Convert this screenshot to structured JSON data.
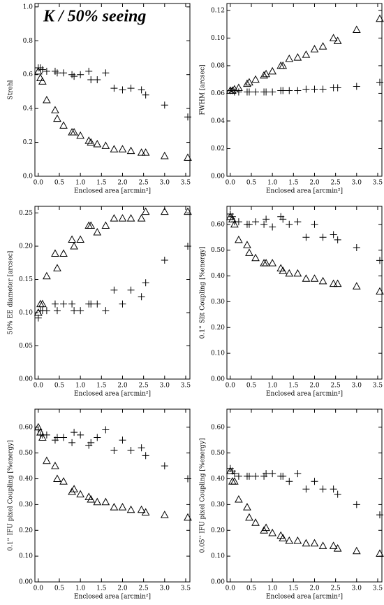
{
  "chart_data": [
    {
      "type": "scatter",
      "annotation": "K / 50% seeing",
      "ylabel": "Strehl",
      "xlabel": "Enclosed area [arcmin²]",
      "xlim": [
        -0.08,
        3.6
      ],
      "xticks": [
        {
          "value": 0,
          "label": "0.0"
        },
        0.5,
        {
          "value": 1,
          "label": "1.0"
        },
        1.5,
        {
          "value": 2,
          "label": "2.0"
        },
        2.5,
        {
          "value": 3,
          "label": "3.0"
        },
        3.5
      ],
      "ylim": [
        0,
        1.02
      ],
      "yticks": [
        {
          "value": 0,
          "label": "0.0"
        },
        0.2,
        0.4,
        0.6,
        0.8,
        {
          "value": 1,
          "label": "1.0"
        }
      ],
      "x": [
        0.0,
        0.05,
        0.1,
        0.2,
        0.4,
        0.45,
        0.6,
        0.8,
        0.85,
        1.0,
        1.2,
        1.25,
        1.4,
        1.6,
        1.8,
        2.0,
        2.2,
        2.45,
        2.55,
        3.0,
        3.55
      ],
      "series": [
        {
          "marker": "plus",
          "color": "#000",
          "values": [
            0.64,
            0.64,
            0.63,
            0.62,
            0.62,
            0.61,
            0.61,
            0.6,
            0.59,
            0.6,
            0.62,
            0.57,
            0.57,
            0.61,
            0.52,
            0.51,
            0.52,
            0.51,
            0.48,
            0.42,
            0.35
          ]
        },
        {
          "marker": "triangle",
          "color": "#000",
          "values": [
            0.62,
            0.58,
            0.56,
            0.45,
            0.39,
            0.34,
            0.3,
            0.26,
            0.26,
            0.24,
            0.21,
            0.2,
            0.19,
            0.18,
            0.16,
            0.16,
            0.15,
            0.14,
            0.14,
            0.12,
            0.11
          ]
        }
      ]
    },
    {
      "type": "scatter",
      "ylabel": "FWHM [arcsec]",
      "xlabel": "Enclosed area [arcmin²]",
      "xlim": [
        -0.08,
        3.6
      ],
      "xticks": [
        {
          "value": 0,
          "label": "0.0"
        },
        0.5,
        {
          "value": 1,
          "label": "1.0"
        },
        1.5,
        {
          "value": 2,
          "label": "2.0"
        },
        2.5,
        {
          "value": 3,
          "label": "3.0"
        },
        3.5
      ],
      "ylim": [
        0,
        0.125
      ],
      "yticks": [
        {
          "value": 0,
          "label": "0.00"
        },
        0.02,
        0.04,
        0.06,
        0.08,
        {
          "value": 0.1,
          "label": "0.10"
        },
        0.12
      ],
      "x": [
        0.0,
        0.05,
        0.1,
        0.2,
        0.4,
        0.45,
        0.6,
        0.8,
        0.85,
        1.0,
        1.2,
        1.25,
        1.4,
        1.6,
        1.8,
        2.0,
        2.2,
        2.45,
        2.55,
        3.0,
        3.55
      ],
      "series": [
        {
          "marker": "plus",
          "color": "#000",
          "values": [
            0.062,
            0.062,
            0.061,
            0.061,
            0.061,
            0.061,
            0.061,
            0.061,
            0.061,
            0.061,
            0.062,
            0.062,
            0.062,
            0.062,
            0.063,
            0.063,
            0.063,
            0.064,
            0.064,
            0.065,
            0.068
          ]
        },
        {
          "marker": "triangle",
          "color": "#000",
          "values": [
            0.062,
            0.062,
            0.063,
            0.064,
            0.067,
            0.068,
            0.07,
            0.073,
            0.074,
            0.076,
            0.08,
            0.08,
            0.085,
            0.086,
            0.088,
            0.092,
            0.094,
            0.1,
            0.098,
            0.106,
            0.114
          ]
        }
      ]
    },
    {
      "type": "scatter",
      "ylabel": "50% EE diameter [arcsec]",
      "xlabel": "Enclosed area [arcmin²]",
      "xlim": [
        -0.08,
        3.6
      ],
      "xticks": [
        {
          "value": 0,
          "label": "0.0"
        },
        0.5,
        {
          "value": 1,
          "label": "1.0"
        },
        1.5,
        {
          "value": 2,
          "label": "2.0"
        },
        2.5,
        {
          "value": 3,
          "label": "3.0"
        },
        3.5
      ],
      "ylim": [
        0,
        0.26
      ],
      "yticks": [
        {
          "value": 0,
          "label": "0.00"
        },
        0.05,
        {
          "value": 0.1,
          "label": "0.10"
        },
        0.15,
        {
          "value": 0.2,
          "label": "0.20"
        },
        0.25
      ],
      "x": [
        0.0,
        0.05,
        0.1,
        0.2,
        0.4,
        0.45,
        0.6,
        0.8,
        0.85,
        1.0,
        1.2,
        1.25,
        1.4,
        1.6,
        1.8,
        2.0,
        2.2,
        2.45,
        2.55,
        3.0,
        3.55
      ],
      "series": [
        {
          "marker": "plus",
          "color": "#000",
          "values": [
            0.092,
            0.103,
            0.103,
            0.103,
            0.113,
            0.103,
            0.113,
            0.113,
            0.103,
            0.103,
            0.113,
            0.113,
            0.113,
            0.103,
            0.134,
            0.113,
            0.134,
            0.124,
            0.145,
            0.179,
            0.2
          ]
        },
        {
          "marker": "triangle",
          "color": "#000",
          "values": [
            0.1,
            0.113,
            0.113,
            0.155,
            0.189,
            0.167,
            0.189,
            0.21,
            0.2,
            0.21,
            0.231,
            0.231,
            0.221,
            0.231,
            0.242,
            0.242,
            0.242,
            0.242,
            0.252,
            0.252,
            0.252
          ]
        }
      ]
    },
    {
      "type": "scatter",
      "ylabel": "0.1'' Slit Coupling [%energy]",
      "xlabel": "Enclosed area [arcmin²]",
      "xlim": [
        -0.08,
        3.6
      ],
      "xticks": [
        {
          "value": 0,
          "label": "0.0"
        },
        0.5,
        {
          "value": 1,
          "label": "1.0"
        },
        1.5,
        {
          "value": 2,
          "label": "2.0"
        },
        2.5,
        {
          "value": 3,
          "label": "3.0"
        },
        3.5
      ],
      "ylim": [
        0,
        0.67
      ],
      "yticks": [
        {
          "value": 0,
          "label": "0.00"
        },
        {
          "value": 0.1,
          "label": "0.10"
        },
        {
          "value": 0.2,
          "label": "0.20"
        },
        {
          "value": 0.3,
          "label": "0.30"
        },
        {
          "value": 0.4,
          "label": "0.40"
        },
        {
          "value": 0.5,
          "label": "0.50"
        },
        {
          "value": 0.6,
          "label": "0.60"
        }
      ],
      "x": [
        0.0,
        0.05,
        0.1,
        0.2,
        0.4,
        0.45,
        0.6,
        0.8,
        0.85,
        1.0,
        1.2,
        1.25,
        1.4,
        1.6,
        1.8,
        2.0,
        2.2,
        2.45,
        2.55,
        3.0,
        3.55
      ],
      "series": [
        {
          "marker": "plus",
          "color": "#000",
          "values": [
            0.64,
            0.63,
            0.61,
            0.61,
            0.6,
            0.6,
            0.61,
            0.6,
            0.62,
            0.59,
            0.63,
            0.62,
            0.6,
            0.61,
            0.55,
            0.6,
            0.55,
            0.56,
            0.54,
            0.51,
            0.46
          ]
        },
        {
          "marker": "triangle",
          "color": "#000",
          "values": [
            0.63,
            0.62,
            0.6,
            0.54,
            0.52,
            0.49,
            0.47,
            0.45,
            0.45,
            0.45,
            0.43,
            0.42,
            0.41,
            0.41,
            0.39,
            0.39,
            0.38,
            0.37,
            0.37,
            0.36,
            0.34
          ]
        }
      ]
    },
    {
      "type": "scatter",
      "ylabel": "0.1'' IFU pixel Coupling [%energy]",
      "xlabel": "Enclosed area [arcmin²]",
      "xlim": [
        -0.08,
        3.6
      ],
      "xticks": [
        {
          "value": 0,
          "label": "0.0"
        },
        0.5,
        {
          "value": 1,
          "label": "1.0"
        },
        1.5,
        {
          "value": 2,
          "label": "2.0"
        },
        2.5,
        {
          "value": 3,
          "label": "3.0"
        },
        3.5
      ],
      "ylim": [
        0,
        0.67
      ],
      "yticks": [
        {
          "value": 0,
          "label": "0.00"
        },
        {
          "value": 0.1,
          "label": "0.10"
        },
        {
          "value": 0.2,
          "label": "0.20"
        },
        {
          "value": 0.3,
          "label": "0.30"
        },
        {
          "value": 0.4,
          "label": "0.40"
        },
        {
          "value": 0.5,
          "label": "0.50"
        },
        {
          "value": 0.6,
          "label": "0.60"
        }
      ],
      "x": [
        0.0,
        0.05,
        0.1,
        0.2,
        0.4,
        0.45,
        0.6,
        0.8,
        0.85,
        1.0,
        1.2,
        1.25,
        1.4,
        1.6,
        1.8,
        2.0,
        2.2,
        2.45,
        2.55,
        3.0,
        3.55
      ],
      "series": [
        {
          "marker": "plus",
          "color": "#000",
          "values": [
            0.59,
            0.57,
            0.57,
            0.57,
            0.55,
            0.56,
            0.56,
            0.54,
            0.58,
            0.57,
            0.53,
            0.54,
            0.56,
            0.59,
            0.51,
            0.55,
            0.51,
            0.52,
            0.49,
            0.45,
            0.4
          ]
        },
        {
          "marker": "triangle",
          "color": "#000",
          "values": [
            0.6,
            0.58,
            0.56,
            0.47,
            0.45,
            0.4,
            0.39,
            0.35,
            0.36,
            0.34,
            0.33,
            0.32,
            0.31,
            0.31,
            0.29,
            0.29,
            0.28,
            0.28,
            0.27,
            0.26,
            0.25
          ]
        }
      ]
    },
    {
      "type": "scatter",
      "ylabel": "0.05'' IFU pixel Coupling [%energy]",
      "xlabel": "Enclosed area [arcmin²]",
      "xlim": [
        -0.08,
        3.6
      ],
      "xticks": [
        {
          "value": 0,
          "label": "0.0"
        },
        0.5,
        {
          "value": 1,
          "label": "1.0"
        },
        1.5,
        {
          "value": 2,
          "label": "2.0"
        },
        2.5,
        {
          "value": 3,
          "label": "3.0"
        },
        3.5
      ],
      "ylim": [
        0,
        0.67
      ],
      "yticks": [
        {
          "value": 0,
          "label": "0.00"
        },
        {
          "value": 0.1,
          "label": "0.10"
        },
        {
          "value": 0.2,
          "label": "0.20"
        },
        {
          "value": 0.3,
          "label": "0.30"
        },
        {
          "value": 0.4,
          "label": "0.40"
        },
        {
          "value": 0.5,
          "label": "0.50"
        },
        {
          "value": 0.6,
          "label": "0.60"
        }
      ],
      "x": [
        0.0,
        0.05,
        0.1,
        0.2,
        0.4,
        0.45,
        0.6,
        0.8,
        0.85,
        1.0,
        1.2,
        1.25,
        1.4,
        1.6,
        1.8,
        2.0,
        2.2,
        2.45,
        2.55,
        3.0,
        3.55
      ],
      "series": [
        {
          "marker": "plus",
          "color": "#000",
          "values": [
            0.44,
            0.43,
            0.42,
            0.41,
            0.41,
            0.41,
            0.41,
            0.41,
            0.42,
            0.42,
            0.41,
            0.41,
            0.39,
            0.42,
            0.36,
            0.39,
            0.36,
            0.36,
            0.34,
            0.3,
            0.26
          ]
        },
        {
          "marker": "triangle",
          "color": "#000",
          "values": [
            0.43,
            0.39,
            0.39,
            0.32,
            0.29,
            0.25,
            0.23,
            0.2,
            0.21,
            0.19,
            0.18,
            0.17,
            0.16,
            0.16,
            0.15,
            0.15,
            0.14,
            0.14,
            0.13,
            0.12,
            0.11
          ]
        }
      ]
    }
  ]
}
